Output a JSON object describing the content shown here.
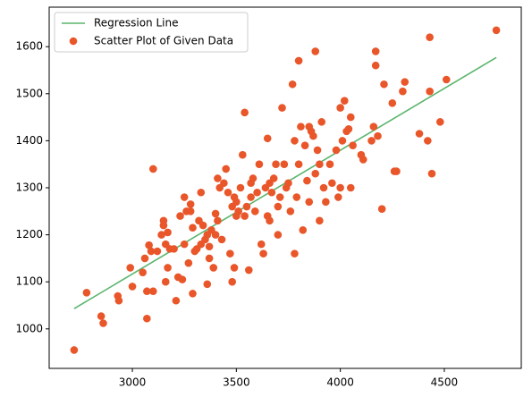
{
  "chart_data": {
    "type": "scatter",
    "xlim": [
      2600,
      4870
    ],
    "ylim": [
      916,
      1684
    ],
    "xticks": [
      3000,
      3500,
      4000,
      4500
    ],
    "yticks": [
      1000,
      1100,
      1200,
      1300,
      1400,
      1500,
      1600
    ],
    "legend": "upper left",
    "series": [
      {
        "name": "Regression Line",
        "type": "line",
        "color": "#5bb56d",
        "x": [
          2720,
          4750
        ],
        "values": [
          1043,
          1577
        ]
      },
      {
        "name": "Scatter Plot of Given Data",
        "type": "scatter",
        "color": "#e9562a",
        "x": [
          2720,
          2780,
          2850,
          2860,
          2930,
          2935,
          2990,
          3000,
          3050,
          3060,
          3070,
          3070,
          3080,
          3090,
          3100,
          3100,
          3120,
          3140,
          3150,
          3150,
          3160,
          3160,
          3170,
          3170,
          3180,
          3200,
          3210,
          3220,
          3230,
          3240,
          3250,
          3250,
          3260,
          3270,
          3280,
          3280,
          3290,
          3290,
          3300,
          3310,
          3320,
          3330,
          3330,
          3340,
          3350,
          3360,
          3360,
          3370,
          3370,
          3380,
          3390,
          3400,
          3400,
          3410,
          3410,
          3420,
          3430,
          3440,
          3450,
          3460,
          3470,
          3480,
          3480,
          3490,
          3490,
          3500,
          3500,
          3510,
          3520,
          3530,
          3540,
          3540,
          3550,
          3560,
          3570,
          3570,
          3580,
          3590,
          3600,
          3610,
          3620,
          3630,
          3640,
          3650,
          3650,
          3660,
          3660,
          3670,
          3680,
          3690,
          3700,
          3700,
          3710,
          3720,
          3730,
          3740,
          3750,
          3760,
          3770,
          3780,
          3780,
          3790,
          3800,
          3800,
          3810,
          3820,
          3830,
          3840,
          3850,
          3850,
          3860,
          3870,
          3880,
          3880,
          3890,
          3900,
          3900,
          3910,
          3920,
          3930,
          3950,
          3960,
          3980,
          3990,
          4000,
          4000,
          4010,
          4020,
          4030,
          4040,
          4050,
          4050,
          4060,
          4100,
          4110,
          4150,
          4160,
          4170,
          4170,
          4180,
          4200,
          4210,
          4250,
          4260,
          4270,
          4300,
          4310,
          4380,
          4420,
          4430,
          4430,
          4440,
          4480,
          4510,
          4750
        ],
        "values": [
          955,
          1077,
          1027,
          1012,
          1070,
          1060,
          1130,
          1090,
          1120,
          1150,
          1022,
          1080,
          1178,
          1165,
          1340,
          1080,
          1165,
          1200,
          1220,
          1230,
          1100,
          1180,
          1130,
          1205,
          1170,
          1170,
          1060,
          1110,
          1240,
          1105,
          1280,
          1180,
          1250,
          1140,
          1265,
          1250,
          1075,
          1215,
          1165,
          1170,
          1230,
          1290,
          1180,
          1220,
          1190,
          1095,
          1200,
          1175,
          1150,
          1210,
          1130,
          1245,
          1200,
          1320,
          1230,
          1300,
          1190,
          1310,
          1340,
          1290,
          1160,
          1260,
          1100,
          1130,
          1280,
          1270,
          1240,
          1250,
          1300,
          1370,
          1460,
          1240,
          1260,
          1125,
          1310,
          1280,
          1320,
          1250,
          1290,
          1350,
          1180,
          1160,
          1300,
          1405,
          1240,
          1310,
          1230,
          1290,
          1320,
          1350,
          1200,
          1260,
          1280,
          1470,
          1350,
          1300,
          1310,
          1250,
          1520,
          1400,
          1160,
          1280,
          1570,
          1350,
          1430,
          1210,
          1390,
          1315,
          1430,
          1270,
          1420,
          1410,
          1590,
          1330,
          1380,
          1230,
          1350,
          1440,
          1300,
          1270,
          1350,
          1310,
          1380,
          1280,
          1300,
          1470,
          1400,
          1485,
          1420,
          1425,
          1450,
          1300,
          1390,
          1370,
          1360,
          1400,
          1430,
          1560,
          1590,
          1410,
          1255,
          1520,
          1480,
          1335,
          1335,
          1505,
          1525,
          1415,
          1400,
          1505,
          1620,
          1330,
          1440,
          1530,
          1635
        ]
      }
    ]
  }
}
